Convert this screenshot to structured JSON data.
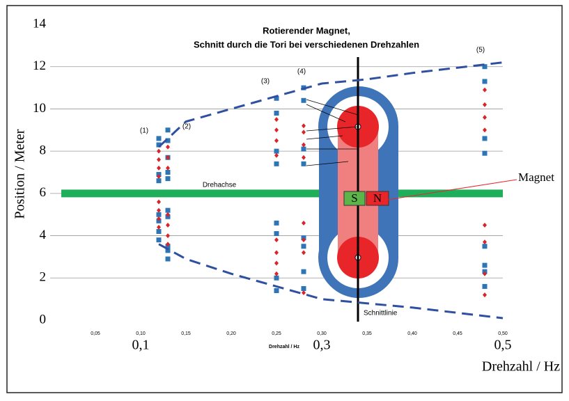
{
  "chart_data": {
    "type": "scatter",
    "title": [
      "Rotierender Magnet,",
      "Schnitt durch die Tori bei verschiedenen Drehzahlen"
    ],
    "x_label_small": "Drehzahl / Hz",
    "x_label": "Drehzahl / Hz",
    "y_label": "Position / Meter",
    "xlim": [
      0,
      0.5
    ],
    "ylim": [
      0,
      14
    ],
    "xticks": [
      {
        "value": 0.05,
        "label": "0,05"
      },
      {
        "value": 0.1,
        "label": "0,10"
      },
      {
        "value": 0.15,
        "label": "0,15"
      },
      {
        "value": 0.2,
        "label": "0,20"
      },
      {
        "value": 0.25,
        "label": "0,25"
      },
      {
        "value": 0.3,
        "label": "0,30"
      },
      {
        "value": 0.35,
        "label": "0,35"
      },
      {
        "value": 0.4,
        "label": "0,40"
      },
      {
        "value": 0.45,
        "label": "0,45"
      },
      {
        "value": 0.5,
        "label": "0,50"
      }
    ],
    "xticks_large": [
      {
        "value": 0.1,
        "label": "0,1"
      },
      {
        "value": 0.3,
        "label": "0,3"
      },
      {
        "value": 0.5,
        "label": "0,5"
      }
    ],
    "yticks": [
      0,
      2,
      4,
      6,
      8,
      10,
      12,
      14
    ],
    "grid": true,
    "series": [
      {
        "color": "#2e75b6",
        "marker": "square",
        "x": [
          0.12,
          0.12,
          0.12,
          0.12,
          0.12,
          0.12,
          0.12,
          0.12,
          0.13,
          0.13,
          0.13,
          0.13,
          0.13,
          0.13,
          0.13,
          0.13,
          0.13,
          0.13,
          0.25,
          0.25,
          0.25,
          0.25,
          0.25,
          0.25,
          0.25,
          0.25,
          0.28,
          0.28,
          0.28,
          0.28,
          0.28,
          0.28,
          0.28,
          0.28,
          0.48,
          0.48,
          0.48,
          0.48,
          0.48,
          0.48,
          0.48,
          0.48
        ],
        "y": [
          8.6,
          8.3,
          6.9,
          6.6,
          5.0,
          4.7,
          4.2,
          3.8,
          9.0,
          8.5,
          7.7,
          7.0,
          6.7,
          5.2,
          4.9,
          3.5,
          3.3,
          2.9,
          10.5,
          9.8,
          8.0,
          7.4,
          4.6,
          4.1,
          2.0,
          1.4,
          11.0,
          10.4,
          8.1,
          7.4,
          3.9,
          3.5,
          2.3,
          1.5,
          12.0,
          11.3,
          8.6,
          7.9,
          3.5,
          2.6,
          2.3,
          1.6
        ]
      },
      {
        "color": "#d7262b",
        "marker": "diamond",
        "x": [
          0.12,
          0.12,
          0.12,
          0.12,
          0.12,
          0.12,
          0.12,
          0.12,
          0.13,
          0.13,
          0.13,
          0.13,
          0.13,
          0.13,
          0.13,
          0.25,
          0.25,
          0.25,
          0.25,
          0.25,
          0.25,
          0.25,
          0.25,
          0.28,
          0.28,
          0.28,
          0.28,
          0.28,
          0.28,
          0.28,
          0.28,
          0.48,
          0.48,
          0.48,
          0.48,
          0.48,
          0.48,
          0.48,
          0.48
        ],
        "y": [
          8.0,
          7.6,
          7.2,
          6.8,
          5.6,
          5.2,
          4.8,
          4.4,
          8.2,
          7.7,
          7.2,
          5.0,
          4.5,
          4.0,
          3.6,
          9.5,
          9.0,
          8.5,
          7.8,
          3.8,
          3.2,
          2.7,
          2.2,
          9.2,
          8.9,
          8.3,
          7.7,
          4.6,
          3.8,
          3.2,
          1.3,
          10.9,
          10.2,
          9.6,
          9.0,
          4.5,
          3.7,
          2.2,
          1.2
        ]
      },
      {
        "color": "#2f4fa0",
        "marker": "dashed-line",
        "x": [
          0.12,
          0.15,
          0.2,
          0.25,
          0.3,
          0.35,
          0.4,
          0.5
        ],
        "y": [
          8.2,
          9.4,
          10.0,
          10.6,
          11.2,
          11.4,
          11.7,
          12.2
        ]
      },
      {
        "color": "#2f4fa0",
        "marker": "dashed-line",
        "x": [
          0.12,
          0.15,
          0.2,
          0.25,
          0.3,
          0.35,
          0.4,
          0.5
        ],
        "y": [
          3.6,
          2.9,
          2.2,
          1.6,
          1.0,
          0.8,
          0.6,
          0.1
        ]
      }
    ],
    "axis_line": {
      "label": "Drehachse",
      "y": 6,
      "color": "#1fae5a"
    },
    "cut_line": {
      "label": "Schnittlinie",
      "x": 0.34
    },
    "annotations": [
      "(1)",
      "(2)",
      "(3)",
      "(4)",
      "(5)"
    ],
    "magnet": {
      "label": "Magnet",
      "south": "S",
      "north": "N"
    }
  }
}
